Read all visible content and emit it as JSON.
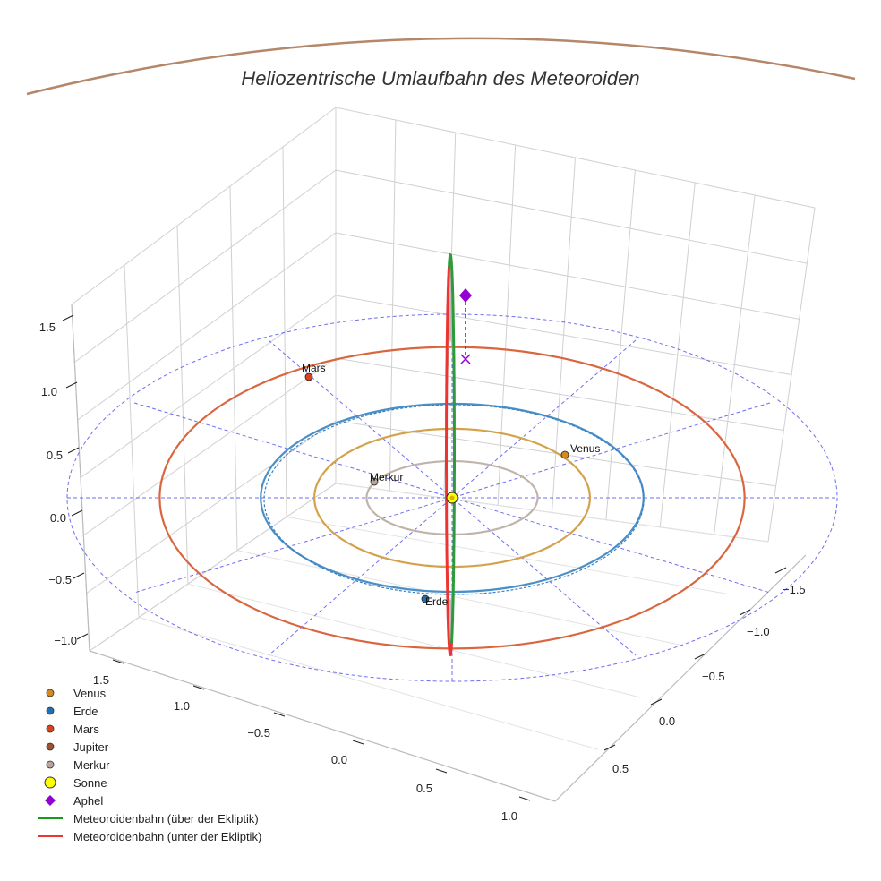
{
  "chart_data": {
    "type": "3d-line",
    "title": "Heliozentrische Umlaufbahn des Meteoroiden",
    "axes": {
      "x_ticks": [
        "−1.5",
        "−1.0",
        "−0.5",
        "0.0",
        "0.5",
        "1.0"
      ],
      "y_ticks": [
        "−1.5",
        "−1.0",
        "−0.5",
        "0.0",
        "0.5"
      ],
      "z_ticks": [
        "−1.0",
        "−0.5",
        "0.0",
        "0.5",
        "1.0",
        "1.5"
      ]
    },
    "planet_orbits": [
      {
        "name": "Merkur",
        "radius_au": 0.39,
        "color": "#bfb4ab"
      },
      {
        "name": "Venus",
        "radius_au": 0.72,
        "color": "#d4a24c"
      },
      {
        "name": "Erde",
        "radius_au": 1.0,
        "color": "#4a90c8"
      },
      {
        "name": "Mars",
        "radius_au": 1.52,
        "color": "#d9663f"
      }
    ],
    "planets": [
      {
        "name": "Venus",
        "label": "Venus",
        "color": "#d48a1c"
      },
      {
        "name": "Erde",
        "label": "Erde",
        "color": "#1f6fb5"
      },
      {
        "name": "Mars",
        "label": "Mars",
        "color": "#d9431e"
      },
      {
        "name": "Merkur",
        "label": "Merkur",
        "color": "#b8a59a"
      }
    ],
    "sun": {
      "label": "Sonne",
      "color": "#ffff00"
    },
    "aphel": {
      "label": "Aphel",
      "color": "#9400d3"
    },
    "meteoroid_orbit": {
      "above_color": "#2e9a3a",
      "below_color": "#ee3333"
    },
    "legend": [
      {
        "label": "Venus",
        "kind": "dot",
        "color": "#d48a1c"
      },
      {
        "label": "Erde",
        "kind": "dot",
        "color": "#1f6fb5"
      },
      {
        "label": "Mars",
        "kind": "dot",
        "color": "#d9431e"
      },
      {
        "label": "Jupiter",
        "kind": "dot",
        "color": "#a0522d"
      },
      {
        "label": "Merkur",
        "kind": "dot",
        "color": "#b8a59a"
      },
      {
        "label": "Sonne",
        "kind": "sun",
        "color": "#ffff00"
      },
      {
        "label": "Aphel",
        "kind": "diamond",
        "color": "#9400d3"
      },
      {
        "label": "Meteoroidenbahn (über der Ekliptik)",
        "kind": "line",
        "color": "#1a9a1a"
      },
      {
        "label": "Meteoroidenbahn (unter der Ekliptik)",
        "kind": "line",
        "color": "#ee3333"
      }
    ]
  }
}
